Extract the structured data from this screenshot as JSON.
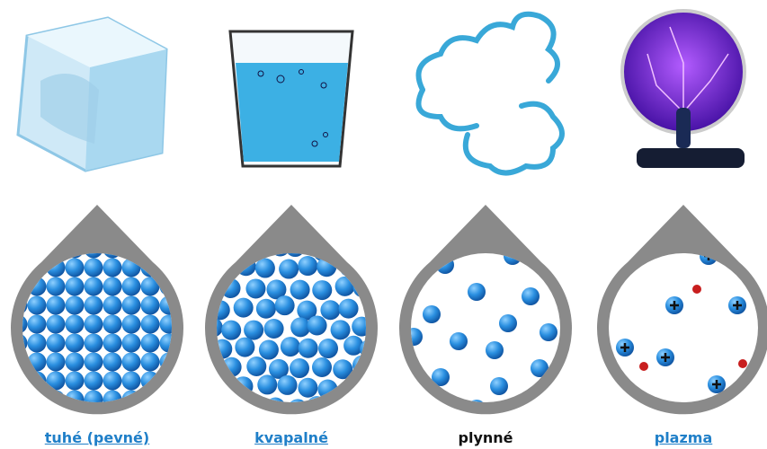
{
  "states": [
    {
      "label": "tuhé (pevné)"
    },
    {
      "label": "kvapalné"
    },
    {
      "label": "plynné"
    },
    {
      "label": "plazma"
    }
  ]
}
